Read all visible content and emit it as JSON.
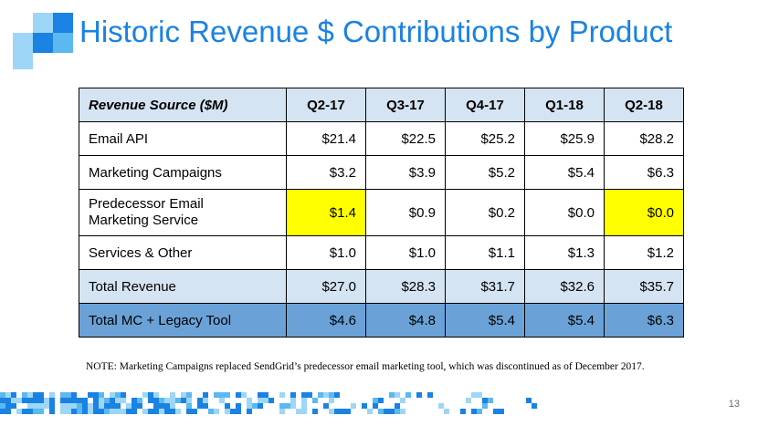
{
  "title": "Historic Revenue $ Contributions by Product",
  "table": {
    "headers": [
      "Revenue Source ($M)",
      "Q2-17",
      "Q3-17",
      "Q4-17",
      "Q1-18",
      "Q2-18"
    ],
    "rows": [
      [
        "Email API",
        "$21.4",
        "$22.5",
        "$25.2",
        "$25.9",
        "$28.2"
      ],
      [
        "Marketing Campaigns",
        "$3.2",
        "$3.9",
        "$5.2",
        "$5.4",
        "$6.3"
      ],
      [
        "Predecessor Email\nMarketing Service",
        "$1.4",
        "$0.9",
        "$0.2",
        "$0.0",
        "$0.0"
      ],
      [
        "Services & Other",
        "$1.0",
        "$1.0",
        "$1.1",
        "$1.3",
        "$1.2"
      ],
      [
        "Total Revenue",
        "$27.0",
        "$28.3",
        "$31.7",
        "$32.6",
        "$35.7"
      ],
      [
        "Total MC + Legacy Tool",
        "$4.6",
        "$4.8",
        "$5.4",
        "$5.4",
        "$6.3"
      ]
    ]
  },
  "note": "NOTE: Marketing Campaigns replaced SendGrid’s predecessor email marketing tool, which was discontinued as of December 2017.",
  "page_number": "13",
  "colors": {
    "accent": "#1a82e2",
    "header_fill": "#d5e4f3",
    "total_mc_fill": "#6aa2d8",
    "highlight": "#ffff00"
  }
}
